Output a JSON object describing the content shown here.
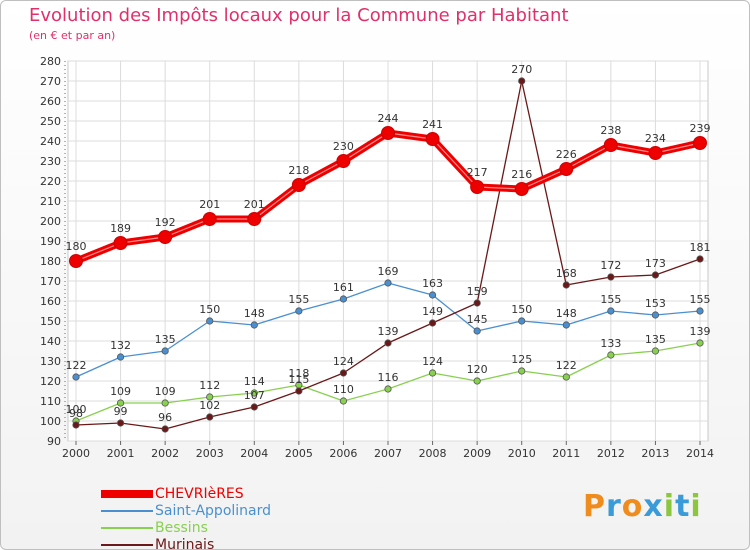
{
  "chart_data": {
    "type": "line",
    "title": "Evolution des Impôts locaux pour la Commune par Habitant",
    "subtitle": "(en € et par an)",
    "xlabel": "",
    "ylabel": "",
    "categories": [
      "2000",
      "2001",
      "2002",
      "2003",
      "2004",
      "2005",
      "2006",
      "2007",
      "2008",
      "2009",
      "2010",
      "2011",
      "2012",
      "2013",
      "2014"
    ],
    "y_ticks": [
      "90",
      "100",
      "110",
      "120",
      "130",
      "140",
      "150",
      "160",
      "170",
      "180",
      "190",
      "200",
      "210",
      "220",
      "230",
      "240",
      "250",
      "260",
      "270",
      "280"
    ],
    "ylim": [
      90,
      280
    ],
    "grid": true,
    "legend_position": "bottom-left",
    "series": [
      {
        "name": "CHEVRIèRES",
        "color": "#ee0000",
        "values": [
          180,
          189,
          192,
          201,
          201,
          218,
          230,
          244,
          241,
          217,
          216,
          226,
          238,
          234,
          239
        ],
        "labels": [
          "180",
          "189",
          "192",
          "201",
          "201",
          "218",
          "230",
          "244",
          "241",
          "217",
          "216",
          "226",
          "238",
          "234",
          "239"
        ]
      },
      {
        "name": "Saint-Appolinard",
        "color": "#4a90d0",
        "values": [
          122,
          132,
          135,
          150,
          148,
          155,
          161,
          169,
          163,
          145,
          150,
          148,
          155,
          153,
          155
        ],
        "labels": [
          "122",
          "132",
          "135",
          "150",
          "148",
          "155",
          "161",
          "169",
          "163",
          "145",
          "150",
          "148",
          "155",
          "153",
          "155"
        ]
      },
      {
        "name": "Bessins",
        "color": "#88d050",
        "values": [
          100,
          109,
          109,
          112,
          114,
          118,
          110,
          116,
          124,
          120,
          125,
          122,
          133,
          135,
          139
        ],
        "labels": [
          "100",
          "109",
          "109",
          "112",
          "114",
          "118",
          "110",
          "116",
          "124",
          "120",
          "125",
          "122",
          "133",
          "135",
          "139"
        ]
      },
      {
        "name": "Murinais",
        "color": "#6b1818",
        "values": [
          98,
          99,
          96,
          102,
          107,
          115,
          124,
          139,
          149,
          159,
          270,
          168,
          172,
          173,
          181
        ],
        "labels": [
          "98",
          "99",
          "96",
          "102",
          "107",
          "115",
          "124",
          "139",
          "149",
          "159",
          "270",
          "168",
          "172",
          "173",
          "181"
        ]
      }
    ]
  },
  "brand": {
    "letters": [
      {
        "char": "P",
        "color": "#f08c1e"
      },
      {
        "char": "r",
        "color": "#3b9bd8"
      },
      {
        "char": "o",
        "color": "#f08c1e"
      },
      {
        "char": "x",
        "color": "#3b9bd8"
      },
      {
        "char": "i",
        "color": "#8cc63f"
      },
      {
        "char": "t",
        "color": "#3b9bd8"
      },
      {
        "char": "i",
        "color": "#8cc63f"
      }
    ]
  }
}
